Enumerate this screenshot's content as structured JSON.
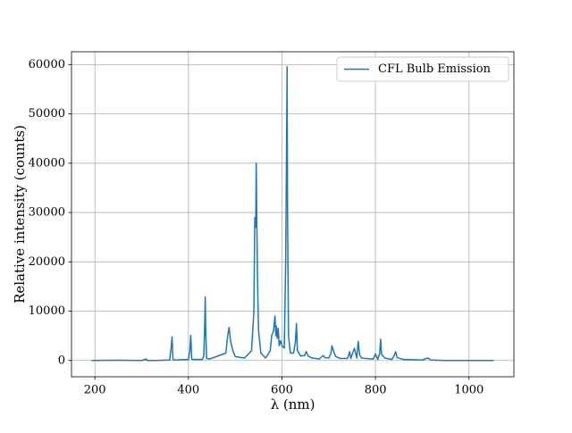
{
  "chart_data": {
    "type": "line",
    "x_label": "λ (nm)",
    "y_label": "Relative intensity (counts)",
    "x": [
      193,
      250,
      300,
      310,
      312,
      330,
      360,
      363,
      365,
      367,
      370,
      400,
      403,
      405,
      407,
      410,
      430,
      433,
      435,
      436,
      437,
      439,
      445,
      480,
      484,
      487,
      490,
      495,
      500,
      520,
      535,
      540,
      542,
      544,
      545,
      546,
      548,
      550,
      555,
      565,
      575,
      578,
      582,
      585,
      587,
      588,
      590,
      592,
      594,
      597,
      600,
      605,
      608,
      610,
      611,
      612,
      614,
      618,
      625,
      629,
      631,
      633,
      640,
      648,
      652,
      656,
      665,
      680,
      688,
      692,
      700,
      705,
      707,
      710,
      715,
      725,
      740,
      745,
      747,
      755,
      760,
      763,
      766,
      770,
      780,
      795,
      800,
      805,
      809,
      811,
      813,
      820,
      835,
      840,
      843,
      846,
      860,
      900,
      912,
      918,
      950,
      1000,
      1053
    ],
    "series": [
      {
        "name": "CFL Bulb Emission",
        "color": "#1f77b4",
        "values": [
          0,
          50,
          0,
          300,
          0,
          0,
          100,
          2500,
          4800,
          200,
          100,
          200,
          2000,
          5100,
          300,
          200,
          200,
          1000,
          8000,
          12900,
          6000,
          400,
          300,
          1500,
          5000,
          6700,
          4000,
          2000,
          800,
          500,
          2000,
          10000,
          29000,
          27000,
          40000,
          30000,
          15000,
          6000,
          1500,
          500,
          2000,
          5000,
          6000,
          9000,
          5000,
          7000,
          4500,
          6500,
          3000,
          4000,
          3000,
          2500,
          20000,
          45000,
          59600,
          30000,
          5000,
          1500,
          1500,
          4000,
          7500,
          2000,
          900,
          1000,
          1800,
          900,
          500,
          300,
          1000,
          600,
          500,
          1500,
          3000,
          2000,
          800,
          400,
          400,
          1800,
          400,
          2500,
          500,
          3900,
          1200,
          500,
          400,
          300,
          1300,
          200,
          1500,
          4300,
          1200,
          500,
          200,
          1000,
          1800,
          600,
          200,
          100,
          500,
          100,
          0,
          0,
          0
        ]
      }
    ],
    "xlim": [
      150,
      1096
    ],
    "ylim": [
      -3300,
      62600
    ],
    "xticks": [
      200,
      400,
      600,
      800,
      1000
    ],
    "yticks": [
      0,
      10000,
      20000,
      30000,
      40000,
      50000,
      60000
    ],
    "grid": true,
    "legend": "upper right"
  }
}
